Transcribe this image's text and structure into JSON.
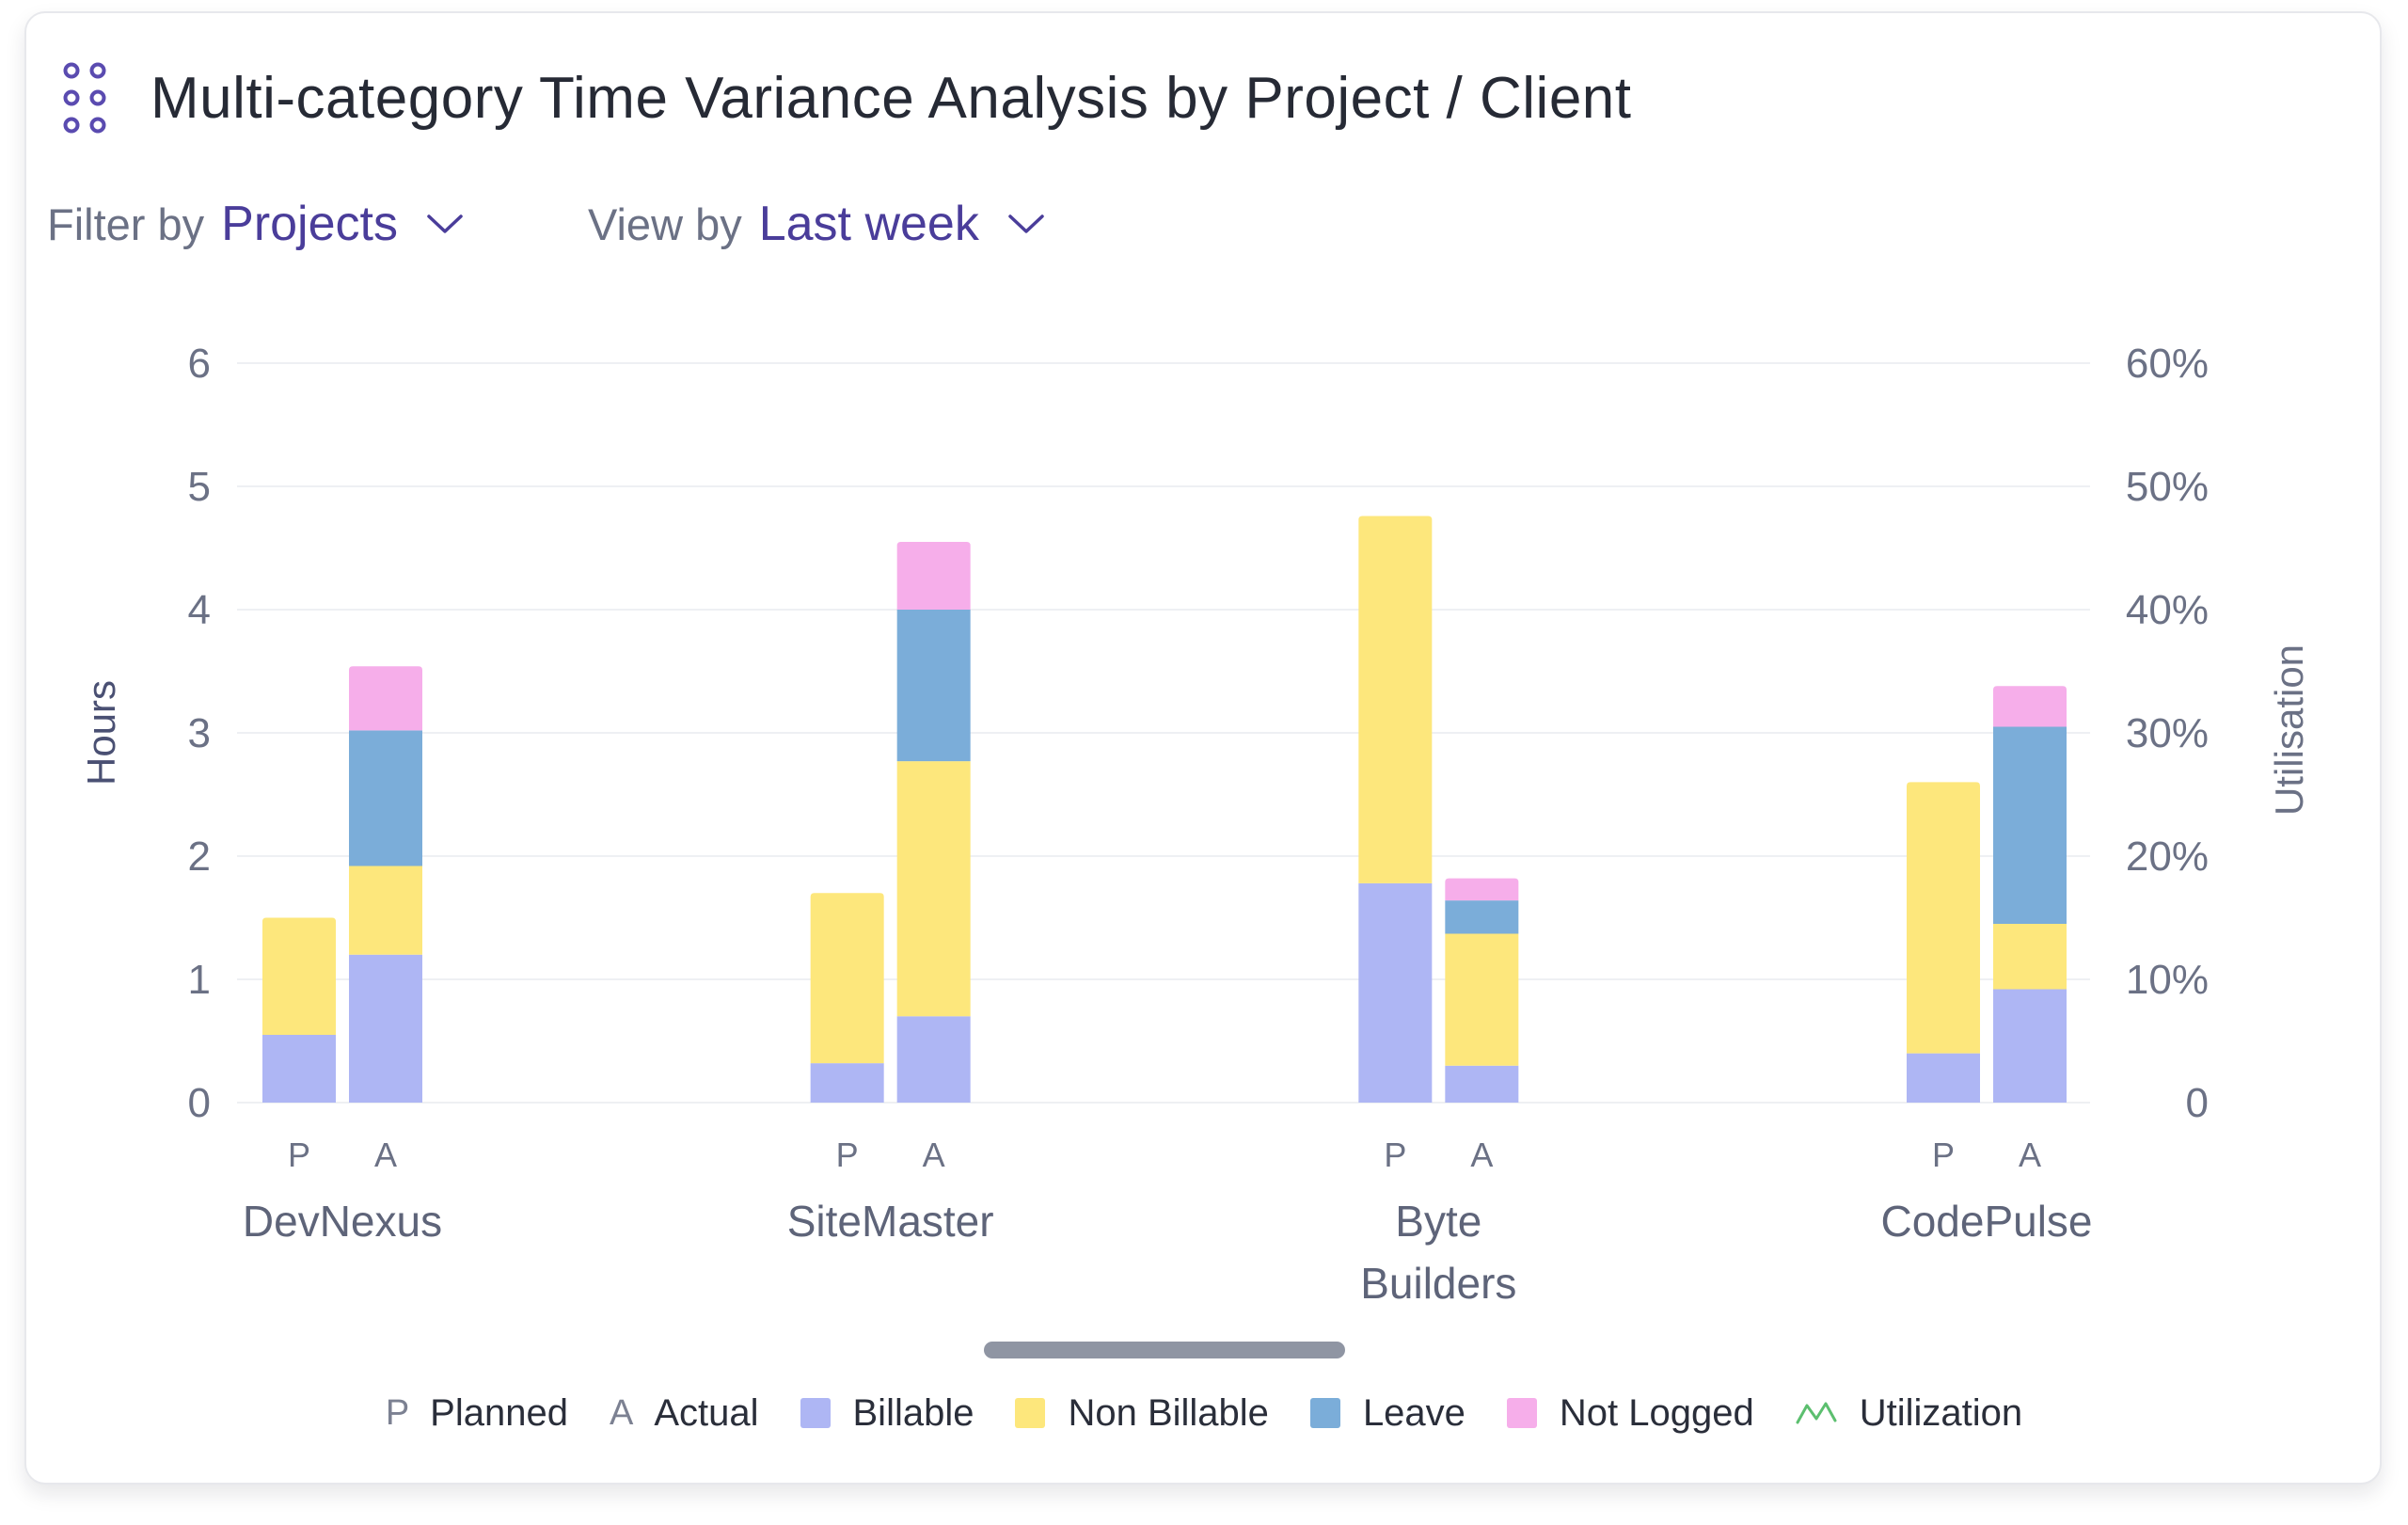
{
  "header": {
    "title": "Multi-category Time Variance Analysis by Project / Client"
  },
  "filters": {
    "filter_label": "Filter by",
    "filter_value": "Projects",
    "view_label": "View by",
    "view_value": "Last week"
  },
  "legend": {
    "planned_key": "P",
    "planned_label": "Planned",
    "actual_key": "A",
    "actual_label": "Actual",
    "billable_label": "Billable",
    "nonbillable_label": "Non Billable",
    "leave_label": "Leave",
    "notlogged_label": "Not Logged",
    "utilization_label": "Utilization"
  },
  "colors": {
    "billable": "#aeb6f4",
    "nonbillable": "#fde77c",
    "leave": "#7badd9",
    "notlogged": "#f6aeea",
    "utilization": "#5cbf6f",
    "accent": "#4a3d9a"
  },
  "chart_data": {
    "type": "bar",
    "stacked": true,
    "title": "Multi-category Time Variance Analysis by Project / Client",
    "ylabel": "Hours",
    "y2label": "Utilisation",
    "ylim": [
      0,
      6
    ],
    "yticks": [
      "0",
      "1",
      "2",
      "3",
      "4",
      "5",
      "6"
    ],
    "y2ticks": [
      "0",
      "10%",
      "20%",
      "30%",
      "40%",
      "50%",
      "60%"
    ],
    "categories": [
      [
        "DevNexus"
      ],
      [
        "SiteMaster"
      ],
      [
        "Byte",
        "Builders"
      ],
      [
        "CodePulse"
      ]
    ],
    "bar_keys": [
      "P",
      "A"
    ],
    "series": [
      {
        "name": "Billable",
        "color": "#aeb6f4",
        "planned": [
          0.55,
          0.32,
          1.78,
          0.4
        ],
        "actual": [
          1.2,
          0.7,
          0.3,
          0.92
        ]
      },
      {
        "name": "Non Billable",
        "color": "#fde77c",
        "planned": [
          0.95,
          1.38,
          2.98,
          2.2
        ],
        "actual": [
          0.72,
          2.07,
          1.07,
          0.53
        ]
      },
      {
        "name": "Leave",
        "color": "#7badd9",
        "planned": [
          0,
          0,
          0,
          0
        ],
        "actual": [
          1.1,
          1.23,
          0.27,
          1.6
        ]
      },
      {
        "name": "Not Logged",
        "color": "#f6aeea",
        "planned": [
          0,
          0,
          0,
          0
        ],
        "actual": [
          0.52,
          0.55,
          0.18,
          0.33
        ]
      }
    ]
  }
}
